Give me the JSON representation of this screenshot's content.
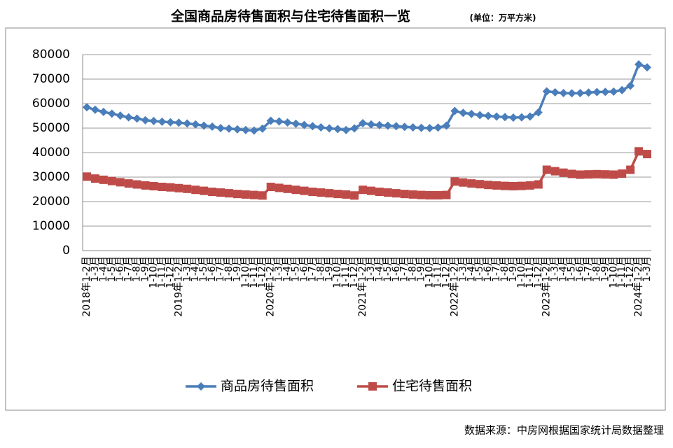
{
  "chart_data": {
    "type": "line",
    "title": "全国商品房待售面积与住宅待售面积一览",
    "subtitle": "(单位：万平方米)",
    "source": "数据来源：中房网根据国家统计局数据整理",
    "categories": [
      "2018年1-2月",
      "1-3月",
      "1-4月",
      "1-5月",
      "1-6月",
      "1-7月",
      "1-8月",
      "1-9月",
      "1-10月",
      "1-11月",
      "1-12月",
      "2019年1-2月",
      "1-3月",
      "1-4月",
      "1-5月",
      "1-6月",
      "1-7月",
      "1-8月",
      "1-9月",
      "1-10月",
      "1-11月",
      "1-12月",
      "2020年1-2月",
      "1-3月",
      "1-4月",
      "1-5月",
      "1-6月",
      "1-7月",
      "1-8月",
      "1-9月",
      "1-10月",
      "1-11月",
      "1-12月",
      "2021年1-2月",
      "1-3月",
      "1-4月",
      "1-5月",
      "1-6月",
      "1-7月",
      "1-8月",
      "1-9月",
      "1-10月",
      "1-11月",
      "1-12月",
      "2022年1-2月",
      "1-3月",
      "1-4月",
      "1-5月",
      "1-6月",
      "1-7月",
      "1-8月",
      "1-9月",
      "1-10月",
      "1-11月",
      "1-12月",
      "2023年1-2月",
      "1-3月",
      "1-4月",
      "1-5月",
      "1-6月",
      "1-7月",
      "1-8月",
      "1-9月",
      "1-10月",
      "1-11月",
      "1-12月",
      "2024年1-2月",
      "1-3月"
    ],
    "series": [
      {
        "name": "商品房待售面积",
        "color": "#4a7ebb",
        "marker": "diamond",
        "values": [
          58500,
          57500,
          56600,
          55900,
          55100,
          54400,
          53900,
          53200,
          52900,
          52600,
          52400,
          52200,
          51900,
          51500,
          51000,
          50600,
          50000,
          49800,
          49500,
          49200,
          49000,
          49800,
          53000,
          52700,
          52300,
          51800,
          51300,
          50800,
          50300,
          49900,
          49600,
          49200,
          49900,
          52000,
          51500,
          51200,
          51000,
          50800,
          50500,
          50300,
          50100,
          50000,
          50200,
          51000,
          57000,
          56200,
          55800,
          55300,
          55000,
          54700,
          54500,
          54300,
          54400,
          54700,
          56400,
          65000,
          64600,
          64300,
          64200,
          64300,
          64500,
          64700,
          64800,
          64900,
          65500,
          67300,
          76000,
          74800
        ]
      },
      {
        "name": "住宅待售面积",
        "color": "#be4b48",
        "marker": "square",
        "values": [
          30200,
          29400,
          28900,
          28400,
          27900,
          27400,
          27000,
          26600,
          26300,
          26000,
          25800,
          25500,
          25200,
          24800,
          24400,
          24000,
          23700,
          23400,
          23100,
          22900,
          22700,
          22500,
          26000,
          25600,
          25200,
          24800,
          24400,
          24000,
          23700,
          23400,
          23100,
          22900,
          22500,
          24800,
          24400,
          24000,
          23700,
          23400,
          23100,
          22900,
          22700,
          22600,
          22600,
          22700,
          28200,
          27800,
          27400,
          27100,
          26800,
          26600,
          26400,
          26300,
          26400,
          26600,
          27000,
          33000,
          32400,
          31800,
          31300,
          31000,
          31100,
          31200,
          31100,
          31000,
          31400,
          33000,
          40500,
          39400
        ]
      }
    ],
    "ylim": [
      0,
      80000
    ],
    "yticks": [
      0,
      10000,
      20000,
      30000,
      40000,
      50000,
      60000,
      70000,
      80000
    ],
    "grid": true,
    "legend": "bottom"
  }
}
